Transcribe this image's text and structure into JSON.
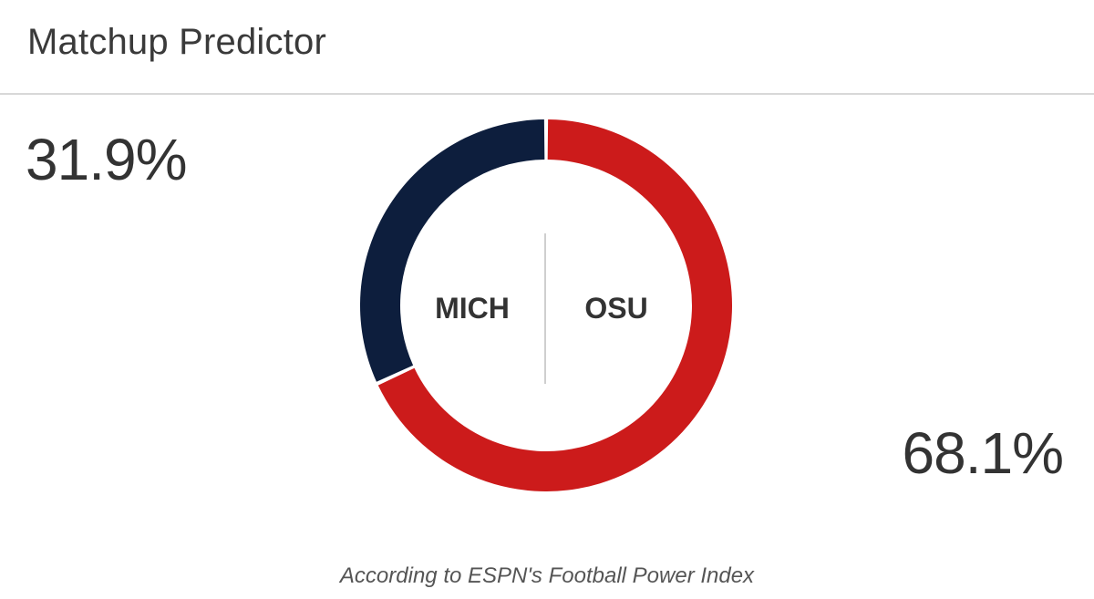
{
  "header": {
    "title": "Matchup Predictor"
  },
  "away": {
    "abbr": "MICH",
    "pct_label": "31.9%",
    "color": "#0d1e3d"
  },
  "home": {
    "abbr": "OSU",
    "pct_label": "68.1%",
    "color": "#cc1b1b"
  },
  "footnote": "According to ESPN's Football Power Index",
  "chart_data": {
    "type": "pie",
    "title": "Matchup Predictor",
    "categories": [
      "MICH",
      "OSU"
    ],
    "values": [
      31.9,
      68.1
    ],
    "colors": [
      "#0d1e3d",
      "#cc1b1b"
    ],
    "donut": true,
    "start_angle": "top",
    "direction": "counterclockwise-from-top for MICH, clockwise for OSU"
  }
}
